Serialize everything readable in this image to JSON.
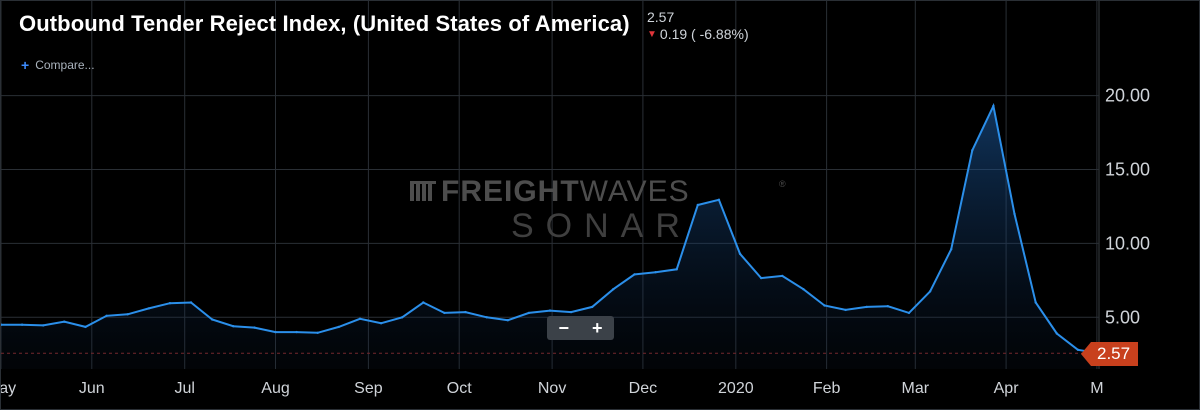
{
  "header": {
    "title": "Outbound Tender Reject Index, (United States of America)",
    "last_value": "2.57",
    "change": "0.19 ( -6.88%)",
    "compare_label": "Compare..."
  },
  "watermark": {
    "line1_bold": "FREIGHT",
    "line1_light": "WAVES",
    "line2": "SONAR",
    "registered": "®"
  },
  "zoom": {
    "minus": "−",
    "plus": "+"
  },
  "colors": {
    "line": "#2b8fea",
    "grid": "#2a2f35",
    "badge": "#c8401d",
    "baseline": "#8a2a2a",
    "down": "#e0353a"
  },
  "chart_data": {
    "type": "area",
    "title": "Outbound Tender Reject Index, (United States of America)",
    "xlabel": "",
    "ylabel": "",
    "ylim": [
      1.5,
      26
    ],
    "y_ticks": [
      5,
      10,
      15,
      20
    ],
    "y_tick_labels": [
      "5.00",
      "10.00",
      "15.00",
      "20.00"
    ],
    "x_ticks": [
      {
        "label": "May",
        "t": 0
      },
      {
        "label": "Jun",
        "t": 4.3
      },
      {
        "label": "Jul",
        "t": 8.7
      },
      {
        "label": "Aug",
        "t": 13.0
      },
      {
        "label": "Sep",
        "t": 17.4
      },
      {
        "label": "Oct",
        "t": 21.7
      },
      {
        "label": "Nov",
        "t": 26.1
      },
      {
        "label": "Dec",
        "t": 30.4
      },
      {
        "label": "2020",
        "t": 34.8
      },
      {
        "label": "Feb",
        "t": 39.1
      },
      {
        "label": "Mar",
        "t": 43.3
      },
      {
        "label": "Apr",
        "t": 47.6
      },
      {
        "label": "M",
        "t": 51.9
      }
    ],
    "x_range": [
      0,
      52
    ],
    "series": [
      {
        "values": [
          4.5,
          4.5,
          4.45,
          4.7,
          4.35,
          5.1,
          5.2,
          5.6,
          5.95,
          6.0,
          4.85,
          4.4,
          4.3,
          4.0,
          4.0,
          3.95,
          4.35,
          4.9,
          4.6,
          5.0,
          6.0,
          5.3,
          5.35,
          5.0,
          4.8,
          5.3,
          5.45,
          5.35,
          5.7,
          6.9,
          7.9,
          8.05,
          8.25,
          12.6,
          12.95,
          9.3,
          7.65,
          7.8,
          6.9,
          5.8,
          5.5,
          5.7,
          5.75,
          5.3,
          6.75,
          9.6,
          16.3,
          19.3,
          12.0,
          6.0,
          3.9,
          2.8,
          2.57
        ]
      }
    ],
    "last_value": 2.57,
    "last_value_label": "2.57",
    "grid": true
  }
}
